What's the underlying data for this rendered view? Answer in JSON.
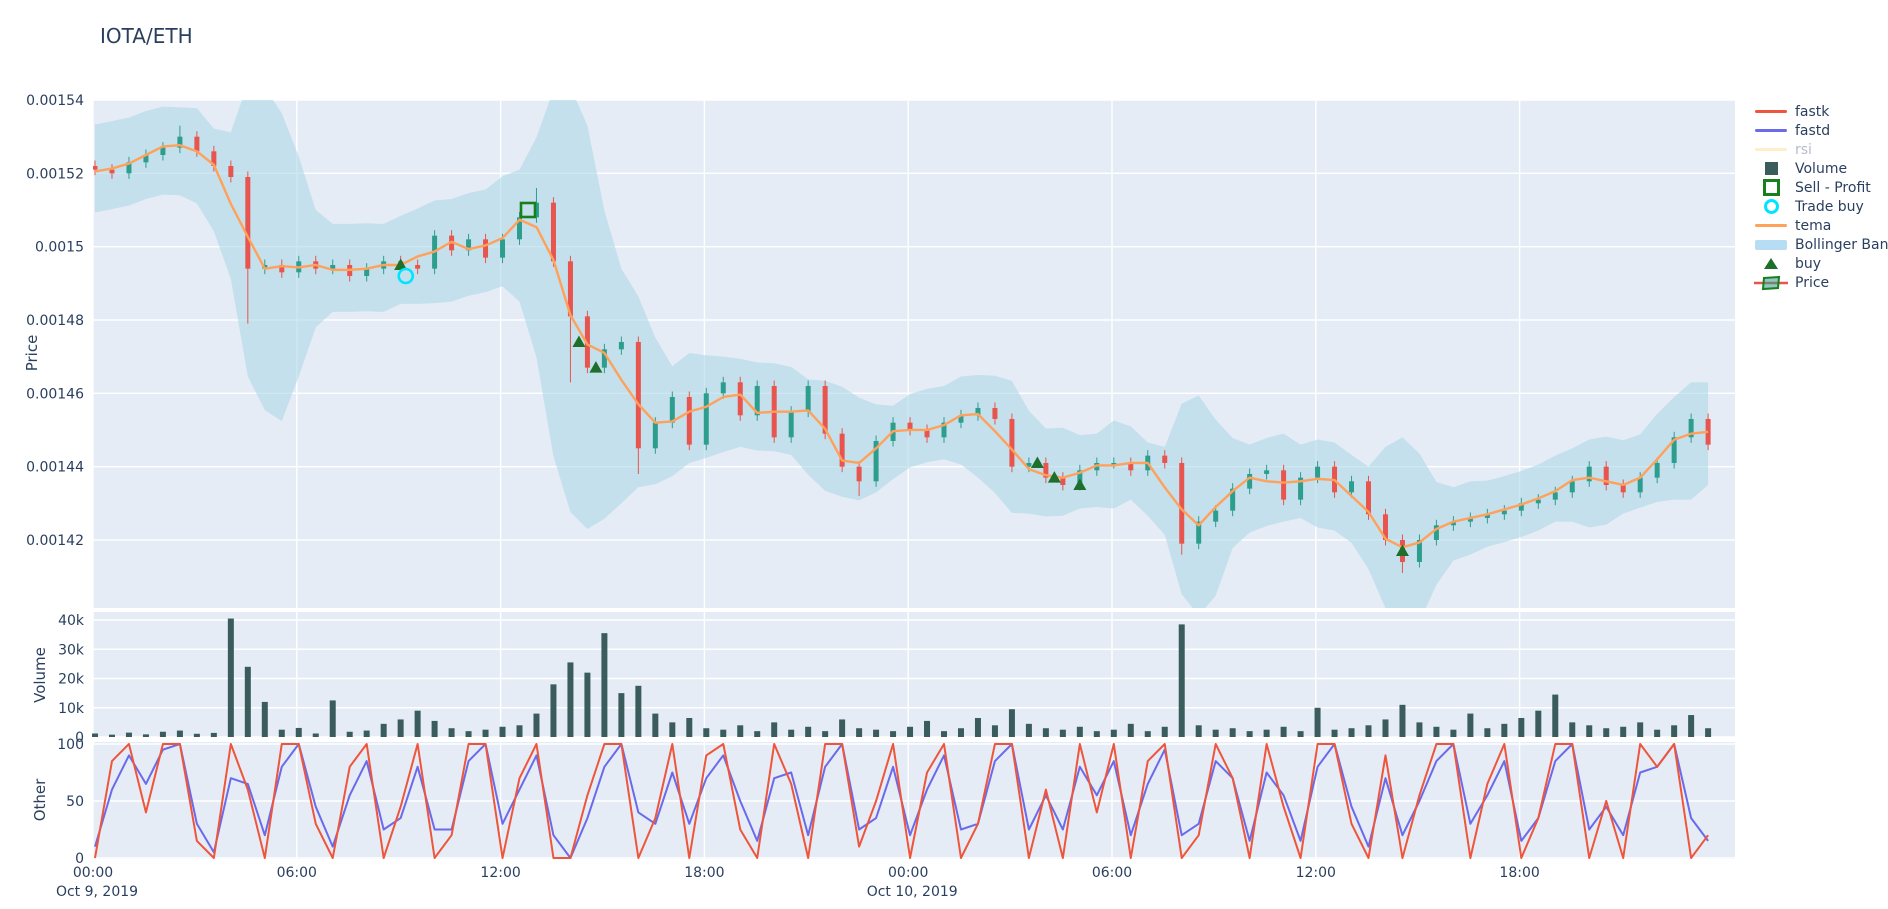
{
  "title": "IOTA/ETH",
  "axes": {
    "price": {
      "title": "Price",
      "tick_labels": [
        "0.00154",
        "0.00152",
        "0.0015",
        "0.00148",
        "0.00146",
        "0.00144",
        "0.00142"
      ],
      "tick_values": [
        1540,
        1520,
        1500,
        1480,
        1460,
        1440,
        1420
      ]
    },
    "volume": {
      "title": "Volume",
      "tick_labels": [
        "40k",
        "30k",
        "20k",
        "10k",
        "0"
      ],
      "tick_values": [
        40,
        30,
        20,
        10,
        0
      ]
    },
    "other": {
      "title": "Other",
      "tick_labels": [
        "100",
        "50",
        "0"
      ],
      "tick_values": [
        100,
        50,
        0
      ]
    },
    "x": {
      "tick_labels": [
        "00:00",
        "06:00",
        "12:00",
        "18:00",
        "00:00",
        "06:00",
        "12:00",
        "18:00"
      ],
      "date_labels": [
        {
          "label": "Oct 9, 2019",
          "tick_index": 0
        },
        {
          "label": "Oct 10, 2019",
          "tick_index": 4
        }
      ]
    }
  },
  "legend": {
    "items": [
      {
        "label": "fastk",
        "type": "line",
        "color": "#EF553B",
        "muted": false
      },
      {
        "label": "fastd",
        "type": "line",
        "color": "#6A6AEB",
        "muted": false
      },
      {
        "label": "rsi",
        "type": "line",
        "color": "#FFDFA0",
        "muted": true
      },
      {
        "label": "Volume",
        "type": "square",
        "color": "#3A5C5C",
        "muted": false
      },
      {
        "label": "Sell - Profit",
        "type": "square-outline",
        "color": "#15801C",
        "muted": false
      },
      {
        "label": "Trade buy",
        "type": "circle-outline",
        "color": "#00E5FF",
        "muted": false
      },
      {
        "label": "tema",
        "type": "line",
        "color": "#FFA15A",
        "muted": false
      },
      {
        "label": "Bollinger Band",
        "type": "band",
        "color": "#B7DDF4",
        "muted": false
      },
      {
        "label": "buy",
        "type": "triangle",
        "color": "#1D6F2B",
        "muted": false
      },
      {
        "label": "Price",
        "type": "candle",
        "color": "#2D9E8E",
        "muted": false
      }
    ]
  },
  "colors": {
    "plot_bg": "#E5ECF6",
    "grid": "#FFFFFF",
    "text": "#2a3f5f",
    "candle_up": "#2D9E8E",
    "candle_down": "#E8544E",
    "tema": "#FFA15A",
    "bollinger_fill": "#ADD8E6",
    "fastk": "#EF553B",
    "fastd": "#6A6AEB",
    "volume_bar": "#3A5C5C",
    "buy_marker": "#1D6F2B",
    "sell_marker": "#15801C",
    "trade_buy_marker": "#00E5FF"
  },
  "chart_data": {
    "type": "candlestick+indicators",
    "title": "IOTA/ETH",
    "x_start": "2019-10-09 00:00",
    "x_end": "2019-10-10 23:30",
    "interval_minutes": 30,
    "price_unit": "ETH x 1e-6",
    "price_range": [
      1401,
      1540
    ],
    "volume_range_k": [
      0,
      42
    ],
    "oscillator_range": [
      0,
      100
    ],
    "rsi_hidden": true,
    "closes": [
      1521,
      1520,
      1523,
      1525,
      1527,
      1530,
      1526,
      1522,
      1519,
      1494,
      1495,
      1493,
      1496,
      1494,
      1495,
      1492,
      1494,
      1496,
      1495,
      1494,
      1503,
      1499,
      1502,
      1497,
      1502,
      1508,
      1512,
      1496,
      1481,
      1467,
      1472,
      1474,
      1445,
      1452,
      1459,
      1446,
      1460,
      1463,
      1454,
      1462,
      1448,
      1455,
      1462,
      1449,
      1440,
      1436,
      1447,
      1452,
      1450,
      1448,
      1452,
      1454,
      1456,
      1453,
      1440,
      1441,
      1437,
      1435,
      1439,
      1441,
      1441,
      1439,
      1443,
      1441,
      1419,
      1425,
      1428,
      1434,
      1438,
      1439,
      1431,
      1437,
      1440,
      1433,
      1436,
      1427,
      1420,
      1414,
      1420,
      1424,
      1425,
      1426,
      1427,
      1428,
      1430,
      1431,
      1433,
      1436,
      1440,
      1435,
      1433,
      1437,
      1441,
      1448,
      1453,
      1446
    ],
    "spikes": [
      {
        "i": 5,
        "high": 1533
      },
      {
        "i": 9,
        "low": 1479
      },
      {
        "i": 26,
        "high": 1516
      },
      {
        "i": 28,
        "low": 1463
      },
      {
        "i": 32,
        "low": 1438
      },
      {
        "i": 45,
        "low": 1432
      },
      {
        "i": 64,
        "low": 1416
      },
      {
        "i": 77,
        "low": 1411
      }
    ],
    "bollinger_halfwidth": [
      12,
      12,
      12,
      12,
      12,
      12,
      13,
      14,
      20,
      40,
      44,
      42,
      30,
      16,
      12,
      12,
      12,
      12,
      12,
      13,
      14,
      14,
      14,
      14,
      15,
      18,
      30,
      50,
      58,
      55,
      42,
      32,
      26,
      20,
      15,
      15,
      14,
      13,
      12,
      12,
      12,
      12,
      13,
      15,
      15,
      14,
      12,
      10,
      10,
      10,
      10,
      12,
      14,
      16,
      18,
      14,
      12,
      12,
      10,
      10,
      12,
      10,
      10,
      12,
      26,
      30,
      24,
      15,
      12,
      12,
      12,
      10,
      12,
      12,
      12,
      14,
      22,
      27,
      23,
      14,
      10,
      10,
      9,
      9,
      9,
      9,
      9,
      10,
      12,
      12,
      10,
      10,
      12,
      14,
      16,
      14
    ],
    "volume_k": [
      1.2,
      0.8,
      1.5,
      0.9,
      1.8,
      2.2,
      1.1,
      1.4,
      40.5,
      24,
      12,
      2.5,
      3.1,
      1.2,
      12.5,
      1.8,
      2.2,
      4.5,
      6,
      9,
      5.5,
      3,
      2,
      2.5,
      3.5,
      4,
      8,
      18,
      25.5,
      22,
      35.5,
      15,
      17.5,
      8,
      5,
      6.5,
      3,
      2.5,
      4,
      2,
      5,
      2.5,
      3.5,
      2,
      6,
      3,
      2.5,
      2,
      3.5,
      5.5,
      2,
      3,
      6.5,
      4,
      9.5,
      4.5,
      3,
      2.5,
      3.5,
      2,
      2.5,
      4.5,
      2,
      3.5,
      38.5,
      4,
      2.5,
      3,
      2,
      2.5,
      3.5,
      2,
      10,
      2.5,
      3,
      4,
      6,
      11,
      5,
      3.5,
      2.5,
      8,
      3,
      4.5,
      6.5,
      9,
      14.5,
      5,
      4,
      3,
      3.5,
      5,
      2.5,
      4,
      7.5,
      3
    ],
    "fastk": [
      0,
      85,
      100,
      40,
      100,
      100,
      15,
      0,
      100,
      60,
      0,
      100,
      100,
      30,
      0,
      80,
      100,
      0,
      45,
      100,
      0,
      20,
      100,
      100,
      0,
      70,
      100,
      0,
      0,
      55,
      100,
      100,
      0,
      35,
      100,
      0,
      90,
      100,
      25,
      0,
      100,
      65,
      0,
      100,
      100,
      10,
      50,
      100,
      0,
      75,
      100,
      0,
      30,
      100,
      100,
      0,
      60,
      0,
      100,
      40,
      100,
      0,
      85,
      100,
      0,
      20,
      100,
      70,
      0,
      100,
      45,
      0,
      100,
      100,
      30,
      0,
      90,
      0,
      55,
      100,
      100,
      0,
      65,
      100,
      0,
      35,
      100,
      100,
      0,
      50,
      0,
      100,
      80,
      100,
      0,
      20
    ],
    "fastd": [
      10,
      60,
      90,
      65,
      95,
      100,
      30,
      5,
      70,
      65,
      20,
      80,
      100,
      45,
      10,
      55,
      85,
      25,
      35,
      80,
      25,
      25,
      85,
      100,
      30,
      60,
      90,
      20,
      0,
      35,
      80,
      100,
      40,
      30,
      75,
      30,
      70,
      90,
      50,
      15,
      70,
      75,
      20,
      80,
      100,
      25,
      35,
      80,
      20,
      60,
      90,
      25,
      30,
      85,
      100,
      25,
      55,
      25,
      80,
      55,
      85,
      20,
      65,
      95,
      20,
      30,
      85,
      70,
      15,
      75,
      55,
      15,
      80,
      100,
      45,
      10,
      70,
      20,
      50,
      85,
      100,
      30,
      55,
      85,
      15,
      35,
      85,
      100,
      25,
      45,
      20,
      75,
      80,
      100,
      35,
      15
    ],
    "markers": {
      "buy": [
        {
          "i": 18,
          "p": 1495
        },
        {
          "i": 28.5,
          "p": 1474
        },
        {
          "i": 29.5,
          "p": 1467
        },
        {
          "i": 55.5,
          "p": 1441
        },
        {
          "i": 56.5,
          "p": 1437
        },
        {
          "i": 58,
          "p": 1435
        },
        {
          "i": 77,
          "p": 1417
        }
      ],
      "sell_profit": [
        {
          "i": 25.5,
          "p": 1510
        }
      ],
      "trade_buy": [
        {
          "i": 18.3,
          "p": 1492
        }
      ]
    }
  }
}
